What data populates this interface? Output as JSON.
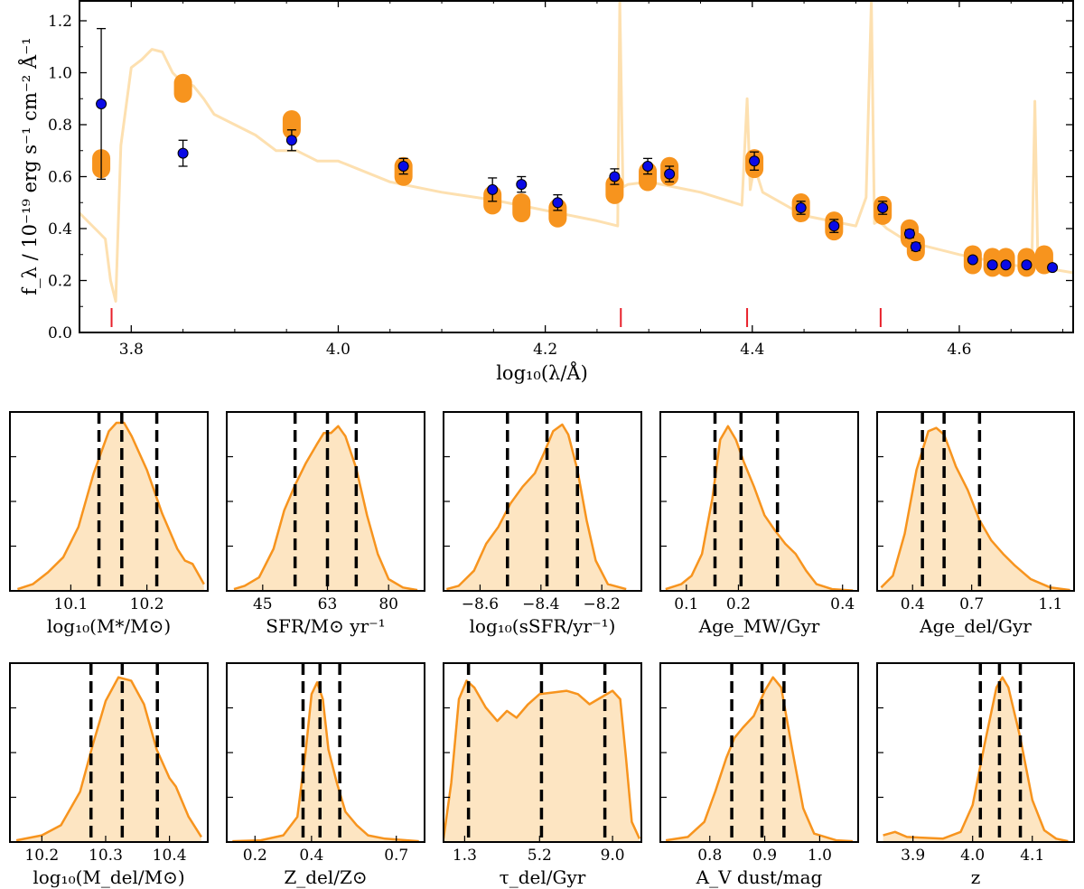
{
  "chart_data": [
    {
      "type": "scatter",
      "id": "sed",
      "title": "",
      "xlabel": "log₁₀(λ/Å)",
      "ylabel": "f_λ / 10⁻¹⁹ erg s⁻¹ cm⁻² Å⁻¹",
      "xlim": [
        3.75,
        4.71
      ],
      "ylim": [
        0.0,
        1.28
      ],
      "xticks": [
        3.8,
        4.0,
        4.2,
        4.4,
        4.6
      ],
      "xtick_labels": [
        "3.8",
        "4.0",
        "4.2",
        "4.4",
        "4.6"
      ],
      "yticks": [
        0.0,
        0.2,
        0.4,
        0.6,
        0.8,
        1.0,
        1.2
      ],
      "ytick_labels": [
        "0.0",
        "0.2",
        "0.4",
        "0.6",
        "0.8",
        "1.0",
        "1.2"
      ],
      "spectrum": {
        "name": "model spectrum",
        "color": "#fde0b0",
        "x": [
          3.75,
          3.765,
          3.775,
          3.78,
          3.785,
          3.79,
          3.8,
          3.81,
          3.82,
          3.83,
          3.84,
          3.85,
          3.86,
          3.87,
          3.88,
          3.9,
          3.92,
          3.94,
          3.96,
          3.98,
          4.0,
          4.05,
          4.1,
          4.15,
          4.2,
          4.25,
          4.27,
          4.272,
          4.275,
          4.28,
          4.3,
          4.35,
          4.39,
          4.395,
          4.398,
          4.402,
          4.41,
          4.45,
          4.5,
          4.51,
          4.515,
          4.518,
          4.522,
          4.53,
          4.55,
          4.6,
          4.65,
          4.67,
          4.673,
          4.676,
          4.68,
          4.71
        ],
        "y": [
          0.46,
          0.4,
          0.36,
          0.2,
          0.12,
          0.72,
          1.02,
          1.05,
          1.09,
          1.08,
          1.0,
          0.96,
          0.95,
          0.9,
          0.84,
          0.8,
          0.76,
          0.7,
          0.7,
          0.66,
          0.66,
          0.58,
          0.54,
          0.51,
          0.47,
          0.43,
          0.41,
          1.28,
          0.56,
          0.57,
          0.58,
          0.54,
          0.49,
          0.9,
          0.55,
          0.64,
          0.54,
          0.45,
          0.41,
          0.52,
          1.28,
          0.42,
          0.43,
          0.4,
          0.35,
          0.3,
          0.26,
          0.25,
          0.89,
          0.26,
          0.25,
          0.23
        ]
      },
      "model_photometry": {
        "name": "model photometry",
        "color": "#f7941e",
        "x": [
          3.771,
          3.85,
          3.955,
          4.063,
          4.149,
          4.177,
          4.212,
          4.267,
          4.299,
          4.32,
          4.402,
          4.447,
          4.479,
          4.526,
          4.552,
          4.558,
          4.613,
          4.632,
          4.645,
          4.665,
          4.682
        ],
        "y": [
          0.65,
          0.94,
          0.8,
          0.62,
          0.51,
          0.48,
          0.46,
          0.55,
          0.6,
          0.62,
          0.65,
          0.48,
          0.41,
          0.47,
          0.38,
          0.33,
          0.28,
          0.27,
          0.27,
          0.27,
          0.28
        ]
      },
      "observed": {
        "name": "observed photometry",
        "color": "#0a0ae6",
        "x": [
          3.771,
          3.85,
          3.955,
          4.063,
          4.149,
          4.177,
          4.212,
          4.267,
          4.299,
          4.32,
          4.402,
          4.447,
          4.479,
          4.526,
          4.552,
          4.558,
          4.613,
          4.632,
          4.645,
          4.665,
          4.69
        ],
        "y": [
          0.88,
          0.69,
          0.74,
          0.64,
          0.55,
          0.57,
          0.5,
          0.6,
          0.64,
          0.61,
          0.66,
          0.48,
          0.41,
          0.48,
          0.38,
          0.33,
          0.28,
          0.26,
          0.26,
          0.26,
          0.25
        ],
        "err": [
          0.29,
          0.05,
          0.04,
          0.03,
          0.045,
          0.03,
          0.03,
          0.03,
          0.03,
          0.03,
          0.035,
          0.025,
          0.025,
          0.025,
          0.015,
          0.015,
          0.01,
          0.01,
          0.01,
          0.01,
          0.01
        ]
      },
      "red_markers_x": [
        3.781,
        4.273,
        4.395,
        4.524
      ],
      "red_marker_color": "#e8202a"
    }
  ],
  "posteriors": [
    {
      "label": "log₁₀(M*/M⊙)",
      "xlim": [
        10.02,
        10.28
      ],
      "ticks": [
        10.1,
        10.2
      ],
      "tick_labels": [
        "10.1",
        "10.2"
      ],
      "quantiles": [
        10.137,
        10.167,
        10.213
      ],
      "density": [
        [
          10.03,
          0.01
        ],
        [
          10.05,
          0.04
        ],
        [
          10.07,
          0.11
        ],
        [
          10.09,
          0.2
        ],
        [
          10.11,
          0.38
        ],
        [
          10.13,
          0.7
        ],
        [
          10.15,
          0.95
        ],
        [
          10.16,
          1.0
        ],
        [
          10.17,
          1.0
        ],
        [
          10.18,
          0.92
        ],
        [
          10.2,
          0.72
        ],
        [
          10.22,
          0.46
        ],
        [
          10.24,
          0.25
        ],
        [
          10.25,
          0.18
        ],
        [
          10.26,
          0.16
        ],
        [
          10.275,
          0.04
        ]
      ]
    },
    {
      "label": "SFR/M⊙ yr⁻¹",
      "xlim": [
        35,
        90
      ],
      "ticks": [
        45,
        63,
        80
      ],
      "tick_labels": [
        "45",
        "63",
        "80"
      ],
      "quantiles": [
        54,
        63,
        71
      ],
      "density": [
        [
          37,
          0.01
        ],
        [
          40,
          0.03
        ],
        [
          44,
          0.08
        ],
        [
          48,
          0.25
        ],
        [
          51,
          0.48
        ],
        [
          54,
          0.63
        ],
        [
          57,
          0.76
        ],
        [
          60,
          0.87
        ],
        [
          62,
          0.94
        ],
        [
          64,
          0.94
        ],
        [
          66,
          0.98
        ],
        [
          68,
          0.92
        ],
        [
          71,
          0.73
        ],
        [
          74,
          0.45
        ],
        [
          77,
          0.22
        ],
        [
          80,
          0.07
        ],
        [
          84,
          0.02
        ],
        [
          88,
          0.005
        ]
      ]
    },
    {
      "label": "log₁₀(sSFR/yr⁻¹)",
      "xlim": [
        -8.72,
        -8.07
      ],
      "ticks": [
        -8.6,
        -8.4,
        -8.2
      ],
      "tick_labels": [
        "−8.6",
        "−8.4",
        "−8.2"
      ],
      "quantiles": [
        -8.51,
        -8.38,
        -8.28
      ],
      "density": [
        [
          -8.71,
          0.01
        ],
        [
          -8.67,
          0.03
        ],
        [
          -8.62,
          0.12
        ],
        [
          -8.58,
          0.28
        ],
        [
          -8.54,
          0.38
        ],
        [
          -8.5,
          0.52
        ],
        [
          -8.46,
          0.62
        ],
        [
          -8.42,
          0.7
        ],
        [
          -8.39,
          0.82
        ],
        [
          -8.36,
          0.95
        ],
        [
          -8.33,
          0.99
        ],
        [
          -8.31,
          0.93
        ],
        [
          -8.28,
          0.72
        ],
        [
          -8.25,
          0.42
        ],
        [
          -8.22,
          0.18
        ],
        [
          -8.18,
          0.04
        ],
        [
          -8.12,
          0.01
        ]
      ]
    },
    {
      "label": "Age_MW/Gyr",
      "xlim": [
        0.05,
        0.43
      ],
      "ticks": [
        0.1,
        0.2,
        0.4
      ],
      "tick_labels": [
        "0.1",
        "0.2",
        "0.4"
      ],
      "quantiles": [
        0.155,
        0.205,
        0.275
      ],
      "density": [
        [
          0.06,
          0.01
        ],
        [
          0.09,
          0.04
        ],
        [
          0.11,
          0.09
        ],
        [
          0.13,
          0.22
        ],
        [
          0.15,
          0.55
        ],
        [
          0.165,
          0.9
        ],
        [
          0.18,
          0.98
        ],
        [
          0.195,
          0.9
        ],
        [
          0.21,
          0.77
        ],
        [
          0.23,
          0.62
        ],
        [
          0.25,
          0.45
        ],
        [
          0.27,
          0.36
        ],
        [
          0.29,
          0.28
        ],
        [
          0.31,
          0.22
        ],
        [
          0.33,
          0.12
        ],
        [
          0.35,
          0.04
        ],
        [
          0.38,
          0.01
        ],
        [
          0.42,
          0.002
        ]
      ]
    },
    {
      "label": "Age_del/Gyr",
      "xlim": [
        0.22,
        1.22
      ],
      "ticks": [
        0.4,
        0.7,
        1.1
      ],
      "tick_labels": [
        "0.4",
        "0.7",
        "1.1"
      ],
      "quantiles": [
        0.45,
        0.56,
        0.74
      ],
      "density": [
        [
          0.24,
          0.02
        ],
        [
          0.3,
          0.09
        ],
        [
          0.36,
          0.34
        ],
        [
          0.42,
          0.72
        ],
        [
          0.48,
          0.95
        ],
        [
          0.52,
          0.97
        ],
        [
          0.56,
          0.93
        ],
        [
          0.62,
          0.74
        ],
        [
          0.68,
          0.6
        ],
        [
          0.74,
          0.42
        ],
        [
          0.8,
          0.3
        ],
        [
          0.86,
          0.22
        ],
        [
          0.92,
          0.15
        ],
        [
          1.0,
          0.07
        ],
        [
          1.1,
          0.02
        ],
        [
          1.2,
          0.005
        ]
      ]
    },
    {
      "label": "log₁₀(M_del/M⊙)",
      "xlim": [
        10.15,
        10.46
      ],
      "ticks": [
        10.2,
        10.3,
        10.4
      ],
      "tick_labels": [
        "10.2",
        "10.3",
        "10.4"
      ],
      "quantiles": [
        10.277,
        10.326,
        10.381
      ],
      "density": [
        [
          10.16,
          0.01
        ],
        [
          10.2,
          0.04
        ],
        [
          10.23,
          0.1
        ],
        [
          10.26,
          0.3
        ],
        [
          10.28,
          0.58
        ],
        [
          10.3,
          0.84
        ],
        [
          10.32,
          0.98
        ],
        [
          10.34,
          0.96
        ],
        [
          10.36,
          0.82
        ],
        [
          10.38,
          0.55
        ],
        [
          10.4,
          0.38
        ],
        [
          10.41,
          0.33
        ],
        [
          10.43,
          0.15
        ],
        [
          10.45,
          0.03
        ]
      ]
    },
    {
      "label": "Z_del/Z⊙",
      "xlim": [
        0.1,
        0.8
      ],
      "ticks": [
        0.2,
        0.4,
        0.7
      ],
      "tick_labels": [
        "0.2",
        "0.4",
        "0.7"
      ],
      "quantiles": [
        0.37,
        0.43,
        0.5
      ],
      "density": [
        [
          0.12,
          0.005
        ],
        [
          0.22,
          0.01
        ],
        [
          0.3,
          0.04
        ],
        [
          0.35,
          0.15
        ],
        [
          0.38,
          0.55
        ],
        [
          0.4,
          0.88
        ],
        [
          0.42,
          0.95
        ],
        [
          0.44,
          0.85
        ],
        [
          0.46,
          0.55
        ],
        [
          0.49,
          0.35
        ],
        [
          0.52,
          0.18
        ],
        [
          0.56,
          0.1
        ],
        [
          0.6,
          0.04
        ],
        [
          0.66,
          0.02
        ],
        [
          0.78,
          0.005
        ]
      ]
    },
    {
      "label": "τ_del/Gyr",
      "xlim": [
        0.2,
        10.5
      ],
      "ticks": [
        1.3,
        5.2,
        9.0
      ],
      "tick_labels": [
        "1.3",
        "5.2",
        "9.0"
      ],
      "quantiles": [
        1.5,
        5.3,
        8.6
      ],
      "density": [
        [
          0.2,
          0.02
        ],
        [
          0.6,
          0.35
        ],
        [
          1.0,
          0.85
        ],
        [
          1.4,
          0.96
        ],
        [
          1.8,
          0.92
        ],
        [
          2.4,
          0.8
        ],
        [
          3.0,
          0.72
        ],
        [
          3.5,
          0.78
        ],
        [
          4.0,
          0.74
        ],
        [
          4.6,
          0.82
        ],
        [
          5.2,
          0.88
        ],
        [
          5.9,
          0.89
        ],
        [
          6.6,
          0.9
        ],
        [
          7.2,
          0.88
        ],
        [
          7.8,
          0.82
        ],
        [
          8.4,
          0.86
        ],
        [
          9.0,
          0.9
        ],
        [
          9.4,
          0.85
        ],
        [
          9.7,
          0.5
        ],
        [
          10.0,
          0.12
        ],
        [
          10.4,
          0.02
        ]
      ]
    },
    {
      "label": "A_V dust/mag",
      "xlim": [
        0.71,
        1.07
      ],
      "ticks": [
        0.8,
        0.9,
        1.0
      ],
      "tick_labels": [
        "0.8",
        "0.9",
        "1.0"
      ],
      "quantiles": [
        0.84,
        0.895,
        0.935
      ],
      "density": [
        [
          0.72,
          0.01
        ],
        [
          0.76,
          0.03
        ],
        [
          0.79,
          0.12
        ],
        [
          0.81,
          0.3
        ],
        [
          0.83,
          0.5
        ],
        [
          0.845,
          0.62
        ],
        [
          0.86,
          0.68
        ],
        [
          0.88,
          0.75
        ],
        [
          0.9,
          0.9
        ],
        [
          0.915,
          0.98
        ],
        [
          0.93,
          0.92
        ],
        [
          0.95,
          0.55
        ],
        [
          0.97,
          0.2
        ],
        [
          0.99,
          0.05
        ],
        [
          1.03,
          0.01
        ],
        [
          1.06,
          0.005
        ]
      ]
    },
    {
      "label": "z",
      "xlim": [
        3.84,
        4.17
      ],
      "ticks": [
        3.9,
        4.0,
        4.1
      ],
      "tick_labels": [
        "3.9",
        "4.0",
        "4.1"
      ],
      "quantiles": [
        4.013,
        4.045,
        4.08
      ],
      "density": [
        [
          3.85,
          0.04
        ],
        [
          3.87,
          0.06
        ],
        [
          3.89,
          0.03
        ],
        [
          3.95,
          0.02
        ],
        [
          3.98,
          0.06
        ],
        [
          4.0,
          0.22
        ],
        [
          4.02,
          0.58
        ],
        [
          4.04,
          0.92
        ],
        [
          4.05,
          0.98
        ],
        [
          4.06,
          0.92
        ],
        [
          4.08,
          0.62
        ],
        [
          4.1,
          0.25
        ],
        [
          4.12,
          0.07
        ],
        [
          4.14,
          0.02
        ],
        [
          4.16,
          0.005
        ]
      ]
    }
  ]
}
